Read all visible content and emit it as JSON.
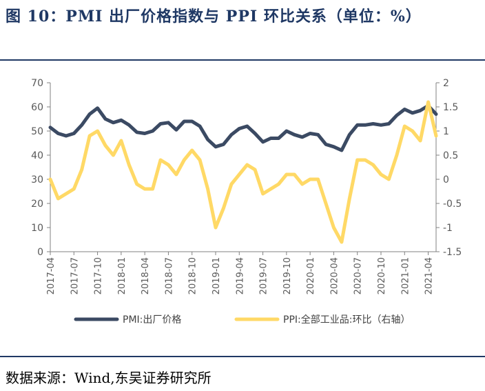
{
  "title": "图 10：PMI 出厂价格指数与 PPI 环比关系（单位：%）",
  "source": "数据来源：Wind,东吴证券研究所",
  "colors": {
    "title": "#1f3864",
    "pmi": "#3b4a63",
    "ppi": "#ffd966",
    "axis": "#808080",
    "tick_text": "#595959"
  },
  "chart_data": {
    "type": "line",
    "left_axis": {
      "min": 0,
      "max": 70,
      "ticks": [
        "0",
        "10",
        "20",
        "30",
        "40",
        "50",
        "60",
        "70"
      ]
    },
    "right_axis": {
      "min": -1.5,
      "max": 2,
      "ticks": [
        "-1.5",
        "-1",
        "-0.5",
        "0",
        "0.5",
        "1",
        "1.5",
        "2"
      ]
    },
    "x_tick_labels": [
      "2017-04",
      "2017-07",
      "2017-10",
      "2018-01",
      "2018-04",
      "2018-07",
      "2018-10",
      "2019-01",
      "2019-04",
      "2019-07",
      "2019-10",
      "2020-01",
      "2020-04",
      "2020-07",
      "2020-10",
      "2021-01",
      "2021-04"
    ],
    "legend_position": "bottom",
    "series": [
      {
        "name": "PMI:出厂价格",
        "axis": "left",
        "values": [
          51.5,
          49.0,
          48.0,
          49.0,
          52.5,
          57.0,
          59.5,
          55.0,
          53.5,
          54.5,
          52.5,
          49.5,
          49.0,
          50.0,
          53.0,
          53.5,
          50.5,
          54.0,
          54.0,
          52.0,
          46.5,
          43.5,
          44.5,
          48.5,
          51.0,
          52.0,
          49.0,
          45.5,
          47.0,
          47.0,
          50.0,
          48.5,
          47.5,
          49.0,
          48.5,
          44.5,
          43.5,
          42.0,
          48.5,
          52.5,
          52.5,
          53.0,
          52.5,
          53.0,
          56.5,
          59.0,
          57.5,
          58.5,
          60.5,
          57.0
        ]
      },
      {
        "name": "PPI:全部工业品:环比（右轴）",
        "axis": "right",
        "values": [
          0.0,
          -0.4,
          -0.3,
          -0.2,
          0.2,
          0.9,
          1.0,
          0.7,
          0.5,
          0.8,
          0.3,
          -0.1,
          -0.2,
          -0.2,
          0.4,
          0.3,
          0.1,
          0.4,
          0.6,
          0.4,
          -0.2,
          -1.0,
          -0.6,
          -0.1,
          0.1,
          0.3,
          0.2,
          -0.3,
          -0.2,
          -0.1,
          0.1,
          0.1,
          -0.1,
          0.0,
          0.0,
          -0.5,
          -1.0,
          -1.3,
          -0.4,
          0.4,
          0.4,
          0.3,
          0.1,
          0.0,
          0.5,
          1.1,
          1.0,
          0.8,
          1.6,
          0.9
        ]
      }
    ]
  }
}
